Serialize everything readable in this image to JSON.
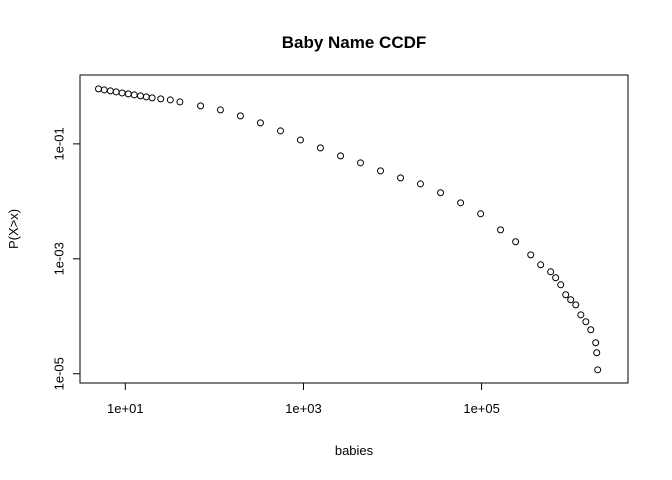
{
  "chart_data": {
    "type": "scatter",
    "title": "Baby Name CCDF",
    "x_label": "babies",
    "y_label": "P(X>x)",
    "log_x": true,
    "log_y": true,
    "color": "#000000",
    "xlim": [
      3.1,
      4400000
    ],
    "ylim": [
      6.9e-06,
      1.58
    ],
    "xticks": [
      {
        "value": 10,
        "label": "1e+01"
      },
      {
        "value": 1000,
        "label": "1e+03"
      },
      {
        "value": 100000,
        "label": "1e+05"
      }
    ],
    "yticks": [
      {
        "value": 0.1,
        "label": "1e-01"
      },
      {
        "value": 0.001,
        "label": "1e-03"
      },
      {
        "value": 1e-05,
        "label": "1e-05"
      }
    ],
    "x": [
      5,
      5.8,
      6.8,
      7.9,
      9.2,
      10.8,
      12.6,
      14.8,
      17.2,
      20,
      25,
      32,
      41,
      70,
      117,
      196,
      329,
      552,
      925,
      1550,
      2610,
      4370,
      7330,
      12300,
      20600,
      34600,
      58100,
      97500,
      163000,
      241000,
      356000,
      460000,
      596000,
      678000,
      773000,
      879000,
      1000000,
      1140000,
      1300000,
      1480000,
      1680000,
      1910000,
      1960000,
      2010000
    ],
    "values": [
      0.906,
      0.869,
      0.835,
      0.802,
      0.77,
      0.741,
      0.711,
      0.684,
      0.656,
      0.631,
      0.607,
      0.582,
      0.537,
      0.458,
      0.39,
      0.307,
      0.232,
      0.168,
      0.117,
      0.0851,
      0.0618,
      0.0468,
      0.0339,
      0.0256,
      0.0201,
      0.0141,
      0.00942,
      0.00607,
      0.00319,
      0.00198,
      0.00117,
      0.000787,
      0.000594,
      0.000468,
      0.000353,
      0.000237,
      0.000194,
      0.000158,
      0.000106,
      8.02e-05,
      5.82e-05,
      3.46e-05,
      2.32e-05,
      1.17e-05
    ]
  }
}
